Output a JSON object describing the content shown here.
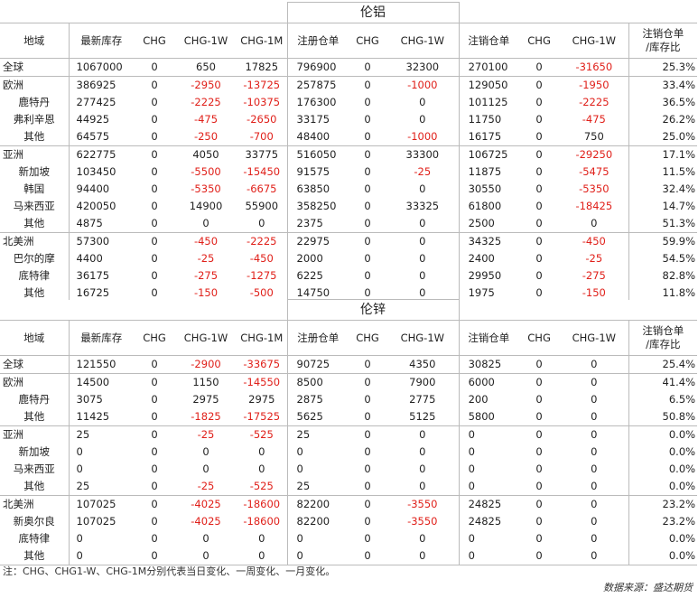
{
  "headers": [
    "地域",
    "最新库存",
    "CHG",
    "CHG-1W",
    "CHG-1M",
    "注册仓单",
    "CHG",
    "CHG-1W",
    "注销仓单",
    "CHG",
    "CHG-1W",
    "注销仓单/库存比"
  ],
  "header_last_lines": [
    "注销仓单",
    "/库存比"
  ],
  "sections": [
    {
      "title": "伦铝",
      "groups": [
        {
          "rows": [
            [
              "全球",
              "1067000",
              "0",
              "650",
              "17825",
              "796900",
              "0",
              "32300",
              "270100",
              "0",
              "-31650",
              "25.3%"
            ]
          ]
        },
        {
          "rows": [
            [
              "欧洲",
              "386925",
              "0",
              "-2950",
              "-13725",
              "257875",
              "0",
              "-1000",
              "129050",
              "0",
              "-1950",
              "33.4%"
            ],
            [
              "鹿特丹",
              "277425",
              "0",
              "-2225",
              "-10375",
              "176300",
              "0",
              "0",
              "101125",
              "0",
              "-2225",
              "36.5%"
            ],
            [
              "弗利辛恩",
              "44925",
              "0",
              "-475",
              "-2650",
              "33175",
              "0",
              "0",
              "11750",
              "0",
              "-475",
              "26.2%"
            ],
            [
              "其他",
              "64575",
              "0",
              "-250",
              "-700",
              "48400",
              "0",
              "-1000",
              "16175",
              "0",
              "750",
              "25.0%"
            ]
          ]
        },
        {
          "rows": [
            [
              "亚洲",
              "622775",
              "0",
              "4050",
              "33775",
              "516050",
              "0",
              "33300",
              "106725",
              "0",
              "-29250",
              "17.1%"
            ],
            [
              "新加坡",
              "103450",
              "0",
              "-5500",
              "-15450",
              "91575",
              "0",
              "-25",
              "11875",
              "0",
              "-5475",
              "11.5%"
            ],
            [
              "韩国",
              "94400",
              "0",
              "-5350",
              "-6675",
              "63850",
              "0",
              "0",
              "30550",
              "0",
              "-5350",
              "32.4%"
            ],
            [
              "马来西亚",
              "420050",
              "0",
              "14900",
              "55900",
              "358250",
              "0",
              "33325",
              "61800",
              "0",
              "-18425",
              "14.7%"
            ],
            [
              "其他",
              "4875",
              "0",
              "0",
              "0",
              "2375",
              "0",
              "0",
              "2500",
              "0",
              "0",
              "51.3%"
            ]
          ]
        },
        {
          "rows": [
            [
              "北美洲",
              "57300",
              "0",
              "-450",
              "-2225",
              "22975",
              "0",
              "0",
              "34325",
              "0",
              "-450",
              "59.9%"
            ],
            [
              "巴尔的摩",
              "4400",
              "0",
              "-25",
              "-450",
              "2000",
              "0",
              "0",
              "2400",
              "0",
              "-25",
              "54.5%"
            ],
            [
              "底特律",
              "36175",
              "0",
              "-275",
              "-1275",
              "6225",
              "0",
              "0",
              "29950",
              "0",
              "-275",
              "82.8%"
            ],
            [
              "其他",
              "16725",
              "0",
              "-150",
              "-500",
              "14750",
              "0",
              "0",
              "1975",
              "0",
              "-150",
              "11.8%"
            ]
          ]
        }
      ]
    },
    {
      "title": "伦锌",
      "groups": [
        {
          "rows": [
            [
              "全球",
              "121550",
              "0",
              "-2900",
              "-33675",
              "90725",
              "0",
              "4350",
              "30825",
              "0",
              "0",
              "25.4%"
            ]
          ]
        },
        {
          "rows": [
            [
              "欧洲",
              "14500",
              "0",
              "1150",
              "-14550",
              "8500",
              "0",
              "7900",
              "6000",
              "0",
              "0",
              "41.4%"
            ],
            [
              "鹿特丹",
              "3075",
              "0",
              "2975",
              "2975",
              "2875",
              "0",
              "2775",
              "200",
              "0",
              "0",
              "6.5%"
            ],
            [
              "其他",
              "11425",
              "0",
              "-1825",
              "-17525",
              "5625",
              "0",
              "5125",
              "5800",
              "0",
              "0",
              "50.8%"
            ]
          ]
        },
        {
          "rows": [
            [
              "亚洲",
              "25",
              "0",
              "-25",
              "-525",
              "25",
              "0",
              "0",
              "0",
              "0",
              "0",
              "0.0%"
            ],
            [
              "新加坡",
              "0",
              "0",
              "0",
              "0",
              "0",
              "0",
              "0",
              "0",
              "0",
              "0",
              "0.0%"
            ],
            [
              "马来西亚",
              "0",
              "0",
              "0",
              "0",
              "0",
              "0",
              "0",
              "0",
              "0",
              "0",
              "0.0%"
            ],
            [
              "其他",
              "25",
              "0",
              "-25",
              "-525",
              "25",
              "0",
              "0",
              "0",
              "0",
              "0",
              "0.0%"
            ]
          ]
        },
        {
          "rows": [
            [
              "北美洲",
              "107025",
              "0",
              "-4025",
              "-18600",
              "82200",
              "0",
              "-3550",
              "24825",
              "0",
              "0",
              "23.2%"
            ],
            [
              "新奥尔良",
              "107025",
              "0",
              "-4025",
              "-18600",
              "82200",
              "0",
              "-3550",
              "24825",
              "0",
              "0",
              "23.2%"
            ],
            [
              "底特律",
              "0",
              "0",
              "0",
              "0",
              "0",
              "0",
              "0",
              "0",
              "0",
              "0",
              "0.0%"
            ],
            [
              "其他",
              "0",
              "0",
              "0",
              "0",
              "0",
              "0",
              "0",
              "0",
              "0",
              "0",
              "0.0%"
            ]
          ]
        }
      ]
    }
  ],
  "note": "注：CHG、CHG1-W、CHG-1M分别代表当日变化、一周变化、一月变化。",
  "source": "数据来源：盛达期货",
  "colors": {
    "negative": "#e0201a",
    "border": "#bbbbbb"
  }
}
